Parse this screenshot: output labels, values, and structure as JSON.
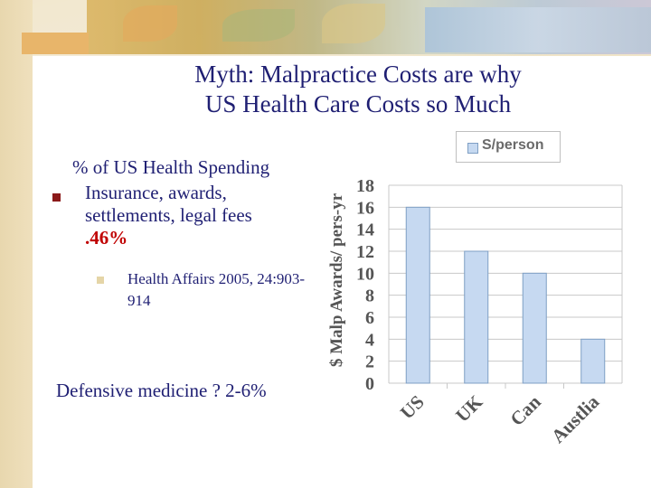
{
  "slide": {
    "title_line1": "Myth: Malpractice Costs are why",
    "title_line2": "US Health Care Costs so Much",
    "subhead": "% of US Health Spending",
    "bullet_text": "Insurance, awards, settlements, legal fees",
    "bullet_value": ".46%",
    "sub_bullet": "Health Affairs 2005, 24:903-914",
    "defensive": "Defensive medicine ? 2-6%"
  },
  "colors": {
    "title": "#1f1f73",
    "highlight": "#c00000",
    "bar_fill": "#c6d9f1",
    "bar_stroke": "#7f9fc4",
    "grid": "#c8c8c8",
    "axis_text": "#555555"
  },
  "chart_data": {
    "type": "bar",
    "categories": [
      "US",
      "UK",
      "Can",
      "Austlia"
    ],
    "series": [
      {
        "name": "S/person",
        "values": [
          16,
          12,
          10,
          4
        ]
      }
    ],
    "ylabel": "$ Malp Awards/ pers-yr",
    "ylim": [
      0,
      18
    ],
    "yticks": [
      0,
      2,
      4,
      6,
      8,
      10,
      12,
      14,
      16,
      18
    ],
    "grid": true,
    "legend_position": "top-right"
  }
}
